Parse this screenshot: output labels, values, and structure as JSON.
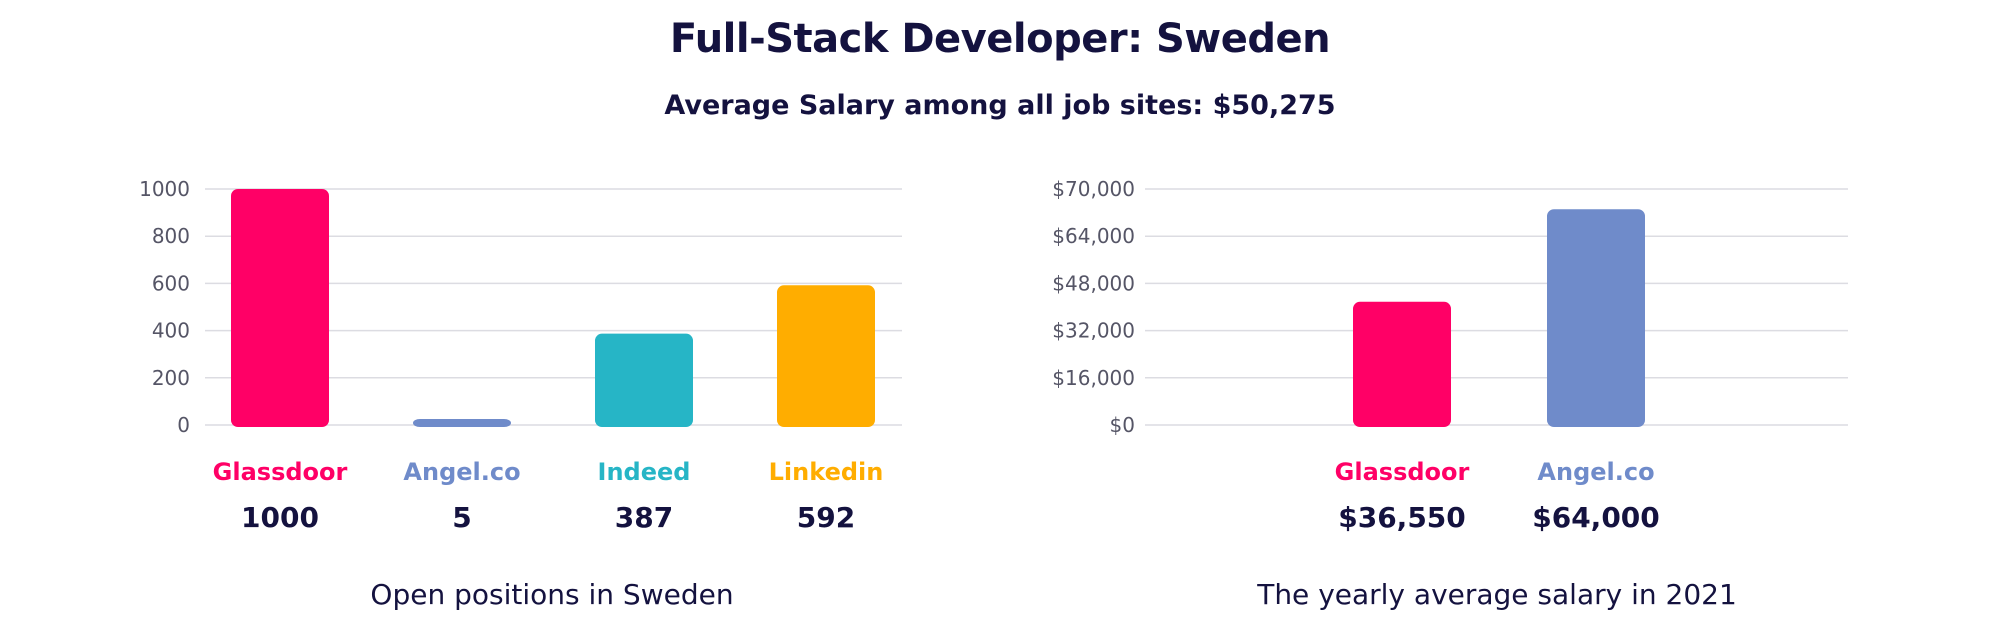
{
  "title": "Full-Stack Developer: Sweden",
  "subtitle": "Average Salary among all job sites: $50,275",
  "chart_data": [
    {
      "type": "bar",
      "categories": [
        "Glassdoor",
        "Angel.co",
        "Indeed",
        "Linkedin"
      ],
      "values": [
        1000,
        5,
        387,
        592
      ],
      "value_labels": [
        "1000",
        "5",
        "387",
        "592"
      ],
      "colors": [
        "#ff0066",
        "#6f8bca",
        "#26b5c6",
        "#ffad00"
      ],
      "yticks": [
        "0",
        "200",
        "400",
        "600",
        "800",
        "1000"
      ],
      "ylim": [
        0,
        1000
      ],
      "grid": true,
      "caption": "Open positions in Sweden"
    },
    {
      "type": "bar",
      "categories": [
        "Glassdoor",
        "Angel.co"
      ],
      "values": [
        36550,
        64000
      ],
      "value_labels": [
        "$36,550",
        "$64,000"
      ],
      "colors": [
        "#ff0066",
        "#6f8bca"
      ],
      "yticks": [
        "$0",
        "$16,000",
        "$32,000",
        "$48,000",
        "$64,000",
        "$70,000"
      ],
      "ylim": [
        0,
        70000
      ],
      "grid": true,
      "caption": "The yearly average salary in 2021"
    }
  ]
}
